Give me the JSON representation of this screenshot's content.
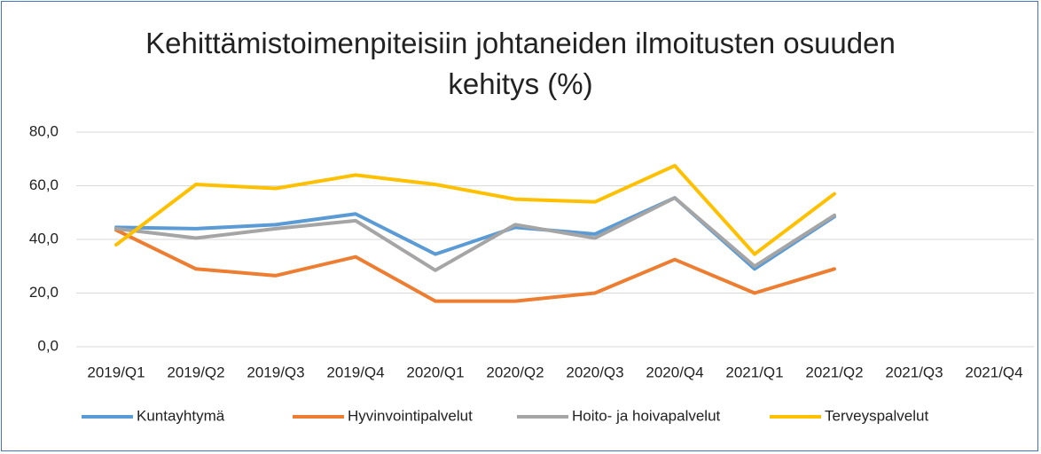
{
  "chart_data": {
    "type": "line",
    "title": "Kehittämistoimenpiteisiin johtaneiden ilmoitusten osuuden kehitys (%)",
    "categories": [
      "2019/Q1",
      "2019/Q2",
      "2019/Q3",
      "2019/Q4",
      "2020/Q1",
      "2020/Q2",
      "2020/Q3",
      "2020/Q4",
      "2021/Q1",
      "2021/Q2",
      "2021/Q3",
      "2021/Q4"
    ],
    "series": [
      {
        "name": "Kuntayhtymä",
        "color": "#5b9bd5",
        "values": [
          44.5,
          44,
          45.5,
          49.5,
          34.5,
          44.5,
          42,
          55.5,
          29,
          48.5,
          null,
          null
        ]
      },
      {
        "name": "Hyvinvointipalvelut",
        "color": "#ed7d31",
        "values": [
          43.5,
          29,
          26.5,
          33.5,
          17,
          17,
          20,
          32.5,
          20,
          29,
          null,
          null
        ]
      },
      {
        "name": "Hoito- ja hoivapalvelut",
        "color": "#a5a5a5",
        "values": [
          44,
          40.5,
          44,
          47,
          28.5,
          45.5,
          40.5,
          55.5,
          30,
          49,
          null,
          null
        ]
      },
      {
        "name": "Terveyspalvelut",
        "color": "#ffc000",
        "values": [
          38,
          60.5,
          59,
          64,
          60.5,
          55,
          54,
          67.5,
          34.5,
          57,
          null,
          null
        ]
      }
    ],
    "ylim": [
      0,
      80
    ],
    "yticks": [
      {
        "value": 0,
        "label": "0,0"
      },
      {
        "value": 20,
        "label": "20,0"
      },
      {
        "value": 40,
        "label": "40,0"
      },
      {
        "value": 60,
        "label": "60,0"
      },
      {
        "value": 80,
        "label": "80,0"
      }
    ],
    "grid": true,
    "legend": "bottom"
  }
}
